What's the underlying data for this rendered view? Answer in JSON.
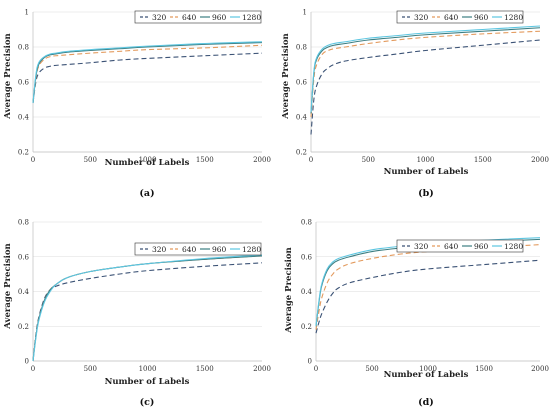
{
  "colors": {
    "320": "#3b5275",
    "640": "#e39a5d",
    "960": "#3c7e82",
    "1280": "#5cc6e1"
  },
  "chart_data": [
    {
      "type": "line",
      "caption": "(a)",
      "xlabel": "Number of Labels",
      "ylabel": "Average Precision",
      "xlim": [
        0,
        2000
      ],
      "ylim": [
        0.2,
        1.0
      ],
      "xticks": [
        0,
        500,
        1000,
        1500,
        2000
      ],
      "yticks": [
        0.2,
        0.4,
        0.6,
        0.8,
        1.0
      ],
      "ytick_labels": [
        "0.2",
        "0.4",
        "0.6",
        "0.8",
        "1"
      ],
      "grid": "horizontal",
      "legend_position": "top-right",
      "x": [
        0,
        25,
        50,
        100,
        150,
        200,
        300,
        500,
        750,
        1000,
        1500,
        2000
      ],
      "series": [
        {
          "name": "320",
          "values": [
            0.48,
            0.6,
            0.65,
            0.68,
            0.69,
            0.695,
            0.7,
            0.71,
            0.725,
            0.735,
            0.75,
            0.765
          ]
        },
        {
          "name": "640",
          "values": [
            0.48,
            0.62,
            0.69,
            0.73,
            0.745,
            0.75,
            0.755,
            0.765,
            0.775,
            0.785,
            0.795,
            0.81
          ]
        },
        {
          "name": "960",
          "values": [
            0.48,
            0.63,
            0.7,
            0.74,
            0.755,
            0.76,
            0.77,
            0.78,
            0.79,
            0.8,
            0.815,
            0.825
          ]
        },
        {
          "name": "1280",
          "values": [
            0.48,
            0.64,
            0.71,
            0.745,
            0.76,
            0.765,
            0.775,
            0.785,
            0.795,
            0.805,
            0.82,
            0.83
          ]
        }
      ]
    },
    {
      "type": "line",
      "caption": "(b)",
      "xlabel": "Number of Labels",
      "ylabel": "Average Precision",
      "xlim": [
        0,
        2000
      ],
      "ylim": [
        0.2,
        1.0
      ],
      "xticks": [
        0,
        500,
        1000,
        1500,
        2000
      ],
      "yticks": [
        0.2,
        0.4,
        0.6,
        0.8,
        1.0
      ],
      "ytick_labels": [
        "0.2",
        "0.4",
        "0.6",
        "0.8",
        "1"
      ],
      "grid": "horizontal",
      "legend_position": "top-right",
      "x": [
        0,
        25,
        50,
        100,
        150,
        200,
        300,
        500,
        750,
        1000,
        1500,
        2000
      ],
      "series": [
        {
          "name": "320",
          "values": [
            0.3,
            0.5,
            0.58,
            0.65,
            0.68,
            0.7,
            0.72,
            0.74,
            0.76,
            0.78,
            0.81,
            0.84
          ]
        },
        {
          "name": "640",
          "values": [
            0.4,
            0.62,
            0.7,
            0.76,
            0.78,
            0.79,
            0.8,
            0.82,
            0.84,
            0.855,
            0.875,
            0.89
          ]
        },
        {
          "name": "960",
          "values": [
            0.42,
            0.65,
            0.73,
            0.78,
            0.8,
            0.81,
            0.82,
            0.84,
            0.855,
            0.87,
            0.89,
            0.91
          ]
        },
        {
          "name": "1280",
          "values": [
            0.43,
            0.66,
            0.74,
            0.79,
            0.81,
            0.82,
            0.83,
            0.85,
            0.865,
            0.88,
            0.9,
            0.92
          ]
        }
      ]
    },
    {
      "type": "line",
      "caption": "(c)",
      "xlabel": "Number of Labels",
      "ylabel": "Average Precision",
      "xlim": [
        0,
        2000
      ],
      "ylim": [
        0,
        0.8
      ],
      "xticks": [
        0,
        500,
        1000,
        1500,
        2000
      ],
      "yticks": [
        0,
        0.2,
        0.4,
        0.6,
        0.8
      ],
      "ytick_labels": [
        "0",
        "0.2",
        "0.4",
        "0.6",
        "0.8"
      ],
      "grid": "horizontal",
      "legend_position": "top-right",
      "x": [
        0,
        25,
        50,
        100,
        150,
        200,
        300,
        500,
        750,
        1000,
        1500,
        2000
      ],
      "series": [
        {
          "name": "320",
          "values": [
            0.0,
            0.15,
            0.25,
            0.36,
            0.41,
            0.43,
            0.45,
            0.475,
            0.5,
            0.52,
            0.545,
            0.565
          ]
        },
        {
          "name": "640",
          "values": [
            0.0,
            0.14,
            0.24,
            0.35,
            0.41,
            0.44,
            0.48,
            0.515,
            0.54,
            0.56,
            0.585,
            0.605
          ]
        },
        {
          "name": "960",
          "values": [
            0.0,
            0.14,
            0.24,
            0.35,
            0.41,
            0.44,
            0.48,
            0.515,
            0.54,
            0.56,
            0.585,
            0.605
          ]
        },
        {
          "name": "1280",
          "values": [
            0.0,
            0.13,
            0.23,
            0.34,
            0.4,
            0.44,
            0.48,
            0.515,
            0.54,
            0.56,
            0.59,
            0.61
          ]
        }
      ]
    },
    {
      "type": "line",
      "caption": "(d)",
      "xlabel": "Number of Labels",
      "ylabel": "Average Precision",
      "xlim": [
        0,
        2000
      ],
      "ylim": [
        0,
        0.8
      ],
      "xticks": [
        0,
        500,
        1000,
        1500,
        2000
      ],
      "yticks": [
        0,
        0.2,
        0.4,
        0.6,
        0.8
      ],
      "ytick_labels": [
        "0",
        "0.2",
        "0.4",
        "0.6",
        "0.8"
      ],
      "grid": "horizontal",
      "legend_position": "top-right",
      "x": [
        0,
        25,
        50,
        100,
        150,
        200,
        300,
        500,
        750,
        1000,
        1500,
        2000
      ],
      "series": [
        {
          "name": "320",
          "values": [
            0.16,
            0.22,
            0.27,
            0.34,
            0.39,
            0.42,
            0.45,
            0.48,
            0.51,
            0.53,
            0.555,
            0.58
          ]
        },
        {
          "name": "640",
          "values": [
            0.18,
            0.28,
            0.36,
            0.45,
            0.5,
            0.53,
            0.56,
            0.59,
            0.615,
            0.63,
            0.65,
            0.67
          ]
        },
        {
          "name": "960",
          "values": [
            0.2,
            0.33,
            0.43,
            0.52,
            0.56,
            0.58,
            0.6,
            0.63,
            0.65,
            0.665,
            0.685,
            0.7
          ]
        },
        {
          "name": "1280",
          "values": [
            0.2,
            0.34,
            0.44,
            0.53,
            0.57,
            0.59,
            0.61,
            0.64,
            0.66,
            0.675,
            0.695,
            0.71
          ]
        }
      ]
    }
  ]
}
